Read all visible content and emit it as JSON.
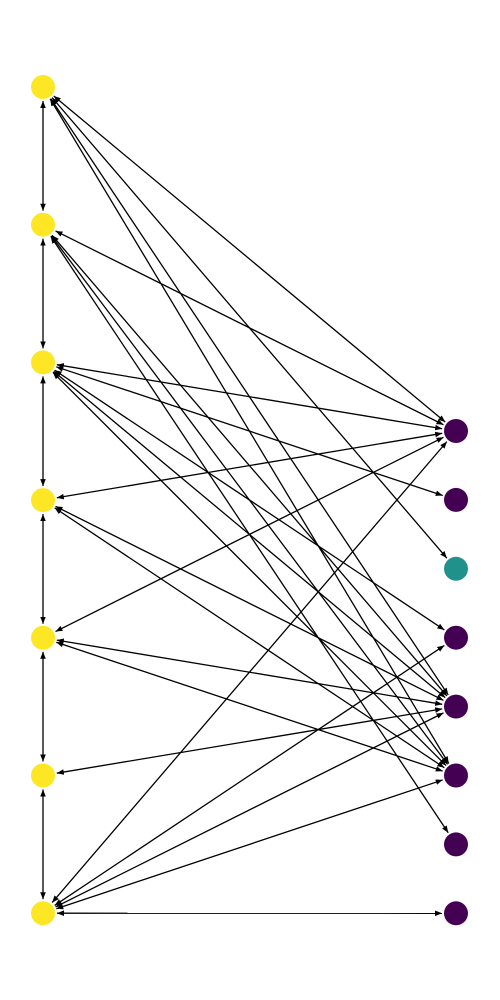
{
  "graph": {
    "directed": true,
    "node_colors": {
      "yellow": "#fde725",
      "teal": "#21918c",
      "purple": "#440154"
    },
    "edge_color": "#000000",
    "nodes": [
      {
        "id": "L0",
        "group": "left",
        "color": "yellow"
      },
      {
        "id": "L1",
        "group": "left",
        "color": "yellow"
      },
      {
        "id": "L2",
        "group": "left",
        "color": "yellow"
      },
      {
        "id": "L3",
        "group": "left",
        "color": "yellow"
      },
      {
        "id": "L4",
        "group": "left",
        "color": "yellow"
      },
      {
        "id": "L5",
        "group": "left",
        "color": "yellow"
      },
      {
        "id": "L6",
        "group": "left",
        "color": "yellow"
      },
      {
        "id": "R0",
        "group": "right",
        "color": "purple"
      },
      {
        "id": "R1",
        "group": "right",
        "color": "purple"
      },
      {
        "id": "R2",
        "group": "right",
        "color": "teal"
      },
      {
        "id": "R3",
        "group": "right",
        "color": "purple"
      },
      {
        "id": "R4",
        "group": "right",
        "color": "purple"
      },
      {
        "id": "R5",
        "group": "right",
        "color": "purple"
      },
      {
        "id": "R6",
        "group": "right",
        "color": "purple"
      },
      {
        "id": "R7",
        "group": "right",
        "color": "purple"
      }
    ],
    "edges": [
      {
        "from": "L0",
        "to": "L1",
        "both": true
      },
      {
        "from": "L1",
        "to": "L2",
        "both": true
      },
      {
        "from": "L2",
        "to": "L3",
        "both": true
      },
      {
        "from": "L3",
        "to": "L4",
        "both": true
      },
      {
        "from": "L4",
        "to": "L5",
        "both": true
      },
      {
        "from": "L5",
        "to": "L6",
        "both": true
      },
      {
        "from": "L0",
        "to": "R0",
        "both": true
      },
      {
        "from": "L0",
        "to": "R2",
        "both": true
      },
      {
        "from": "L0",
        "to": "R4",
        "both": true
      },
      {
        "from": "L0",
        "to": "R5",
        "both": true
      },
      {
        "from": "L1",
        "to": "R0",
        "both": true
      },
      {
        "from": "L1",
        "to": "R4",
        "both": true
      },
      {
        "from": "L1",
        "to": "R5",
        "both": true
      },
      {
        "from": "L1",
        "to": "R6",
        "both": true
      },
      {
        "from": "L2",
        "to": "R0",
        "both": true
      },
      {
        "from": "L2",
        "to": "R1",
        "both": true
      },
      {
        "from": "L2",
        "to": "R3",
        "both": true
      },
      {
        "from": "L2",
        "to": "R4",
        "both": true
      },
      {
        "from": "L2",
        "to": "R5",
        "both": true
      },
      {
        "from": "L3",
        "to": "R0",
        "both": true
      },
      {
        "from": "L3",
        "to": "R4",
        "both": true
      },
      {
        "from": "L3",
        "to": "R5",
        "both": true
      },
      {
        "from": "L4",
        "to": "R0",
        "both": true
      },
      {
        "from": "L4",
        "to": "R4",
        "both": true
      },
      {
        "from": "L4",
        "to": "R5",
        "both": true
      },
      {
        "from": "L5",
        "to": "R4",
        "both": true
      },
      {
        "from": "L6",
        "to": "R0",
        "both": true
      },
      {
        "from": "L6",
        "to": "R3",
        "both": true
      },
      {
        "from": "L6",
        "to": "R4",
        "both": true
      },
      {
        "from": "L6",
        "to": "R5",
        "both": true
      },
      {
        "from": "L6",
        "to": "R7",
        "both": true
      }
    ]
  }
}
